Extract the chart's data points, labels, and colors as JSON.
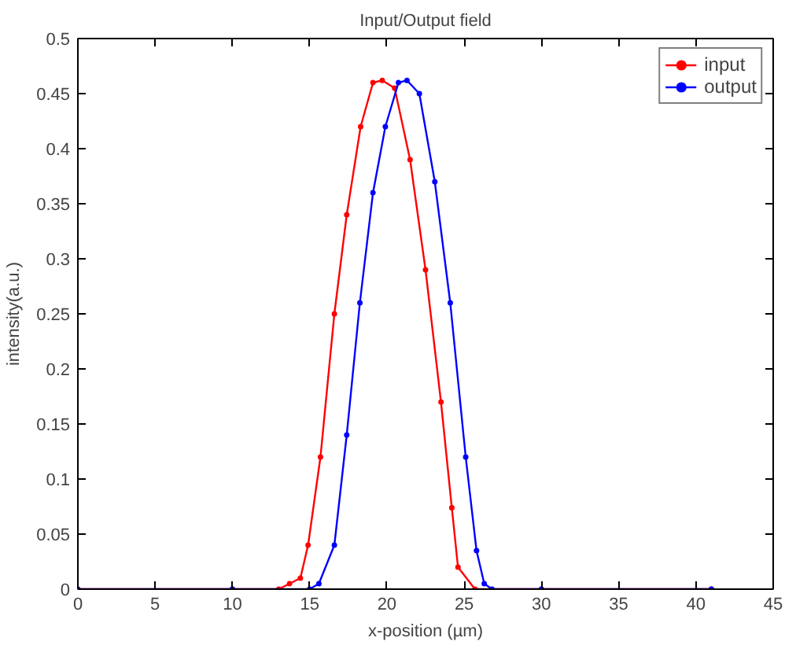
{
  "chart_data": {
    "type": "line",
    "title": "Input/Output field",
    "xlabel": "x-position (µm)",
    "ylabel": "intensity(a.u.)",
    "xlim": [
      0,
      45
    ],
    "xticks": [
      0,
      5,
      10,
      15,
      20,
      25,
      30,
      35,
      40,
      45
    ],
    "ylim": [
      0,
      0.5
    ],
    "yticks": [
      0,
      0.05,
      0.1,
      0.15,
      0.2,
      0.25,
      0.3,
      0.35,
      0.4,
      0.45,
      0.5
    ],
    "grid": false,
    "legend": "top right",
    "marker": "circle",
    "line_style": "solid",
    "series": [
      {
        "name": "input",
        "color": "#ff0000",
        "x": [
          0,
          10,
          13.0,
          13.7,
          14.4,
          14.9,
          15.7,
          16.6,
          17.4,
          18.3,
          19.1,
          19.7,
          20.5,
          21.5,
          22.5,
          23.5,
          24.2,
          24.6,
          25.7,
          30,
          41
        ],
        "values": [
          0,
          0,
          0,
          0.005,
          0.01,
          0.04,
          0.12,
          0.25,
          0.34,
          0.42,
          0.46,
          0.462,
          0.455,
          0.39,
          0.29,
          0.17,
          0.074,
          0.02,
          0,
          0,
          0
        ]
      },
      {
        "name": "output",
        "color": "#0000ff",
        "x": [
          0,
          10,
          15.0,
          15.6,
          16.6,
          17.4,
          18.25,
          19.1,
          19.9,
          20.75,
          21.3,
          22.1,
          23.1,
          24.1,
          25.1,
          25.8,
          26.3,
          26.8,
          30,
          41
        ],
        "values": [
          0,
          0,
          0,
          0.005,
          0.04,
          0.14,
          0.26,
          0.36,
          0.42,
          0.46,
          0.462,
          0.45,
          0.37,
          0.26,
          0.12,
          0.035,
          0.005,
          0,
          0,
          0
        ]
      }
    ]
  }
}
